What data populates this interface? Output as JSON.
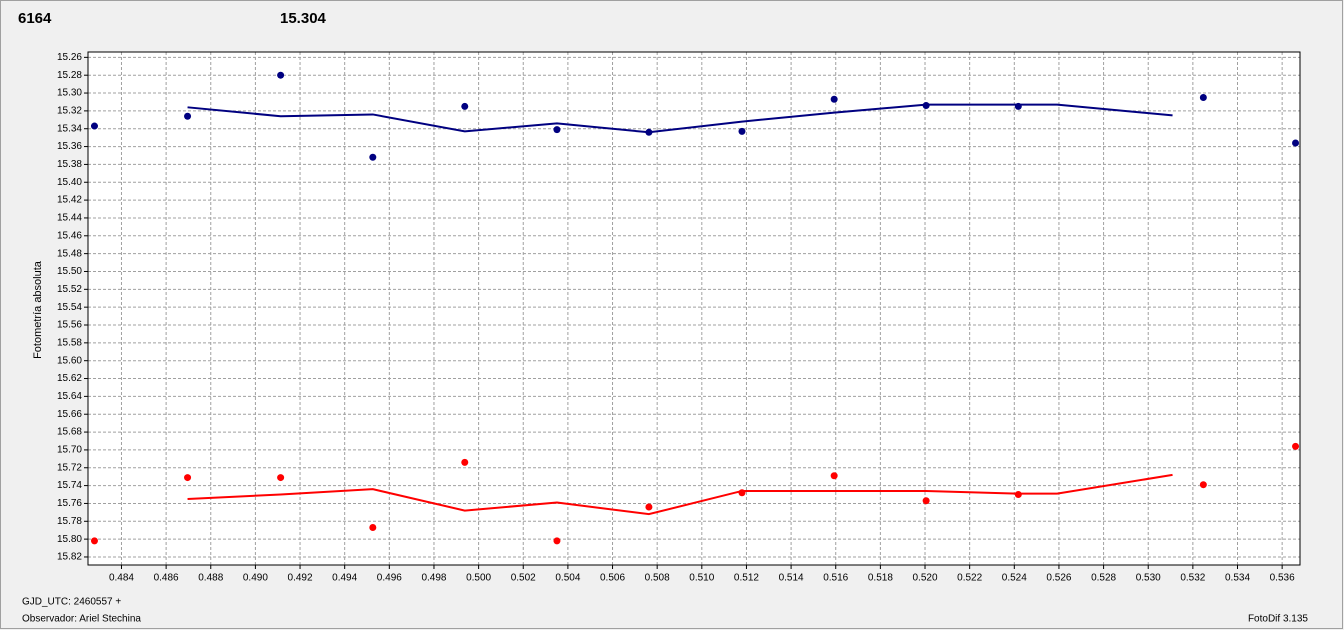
{
  "chart_data": {
    "type": "scatter",
    "title": "6164",
    "title_color": "#ff0000",
    "subtitle": "15.304",
    "subtitle_color": "#000080",
    "y_label": "Fotometría absoluta",
    "footer_left": [
      "GJD_UTC: 2460557 +",
      "Observador: Ariel Stechina"
    ],
    "footer_right": "FotoDif 3.135",
    "xlim": [
      0.4825,
      0.5368
    ],
    "ylim": [
      15.254,
      15.829
    ],
    "y_inverted": true,
    "grid": true,
    "xticks": [
      0.484,
      0.486,
      0.488,
      {
        "value": 0.49,
        "label": "0.490"
      },
      0.492,
      0.494,
      0.496,
      0.498,
      {
        "value": 0.5,
        "label": "0.500"
      },
      0.502,
      0.504,
      0.506,
      0.508,
      {
        "value": 0.51,
        "label": "0.510"
      },
      0.512,
      0.514,
      0.516,
      0.518,
      {
        "value": 0.52,
        "label": "0.520"
      },
      0.522,
      0.524,
      0.526,
      0.528,
      {
        "value": 0.53,
        "label": "0.530"
      },
      0.532,
      0.534,
      0.536
    ],
    "yticks": [
      15.26,
      15.28,
      {
        "value": 15.3,
        "label": "15.30"
      },
      15.32,
      15.34,
      15.36,
      15.38,
      {
        "value": 15.4,
        "label": "15.40"
      },
      15.42,
      15.44,
      15.46,
      15.48,
      {
        "value": 15.5,
        "label": "15.50"
      },
      15.52,
      15.54,
      15.56,
      15.58,
      {
        "value": 15.6,
        "label": "15.60"
      },
      15.62,
      15.64,
      15.66,
      15.68,
      {
        "value": 15.7,
        "label": "15.70"
      },
      15.72,
      15.74,
      15.76,
      15.78,
      {
        "value": 15.8,
        "label": "15.80"
      },
      15.82
    ],
    "series": [
      {
        "mode": "markers",
        "color": "#000080",
        "x": [
          0.48279,
          0.48696,
          0.49113,
          0.49526,
          0.49938,
          0.50351,
          0.50763,
          0.5118,
          0.51593,
          0.52005,
          0.52418,
          0.53247,
          0.5366
        ],
        "values": [
          15.337,
          15.326,
          15.28,
          15.372,
          15.315,
          15.341,
          15.344,
          15.343,
          15.307,
          15.314,
          15.315,
          15.305,
          15.356
        ]
      },
      {
        "mode": "line",
        "color": "#000080",
        "x": [
          0.48696,
          0.49113,
          0.49526,
          0.49938,
          0.50351,
          0.50763,
          0.5118,
          0.51593,
          0.52005,
          0.52592,
          0.53109
        ],
        "values": [
          15.316,
          15.326,
          15.324,
          15.343,
          15.334,
          15.344,
          15.332,
          15.322,
          15.313,
          15.313,
          15.325
        ]
      },
      {
        "mode": "markers",
        "color": "#ff0000",
        "x": [
          0.48279,
          0.48696,
          0.49113,
          0.49526,
          0.49938,
          0.50351,
          0.50763,
          0.5118,
          0.51593,
          0.52005,
          0.52418,
          0.53247,
          0.5366
        ],
        "values": [
          15.802,
          15.731,
          15.731,
          15.787,
          15.714,
          15.802,
          15.764,
          15.748,
          15.729,
          15.757,
          15.75,
          15.739,
          15.696
        ]
      },
      {
        "mode": "line",
        "color": "#ff0000",
        "x": [
          0.48696,
          0.49113,
          0.49526,
          0.49938,
          0.50351,
          0.50763,
          0.5118,
          0.51593,
          0.52005,
          0.52418,
          0.52592,
          0.53109
        ],
        "values": [
          15.755,
          15.75,
          15.744,
          15.768,
          15.759,
          15.772,
          15.746,
          15.746,
          15.746,
          15.749,
          15.749,
          15.728
        ]
      }
    ]
  }
}
